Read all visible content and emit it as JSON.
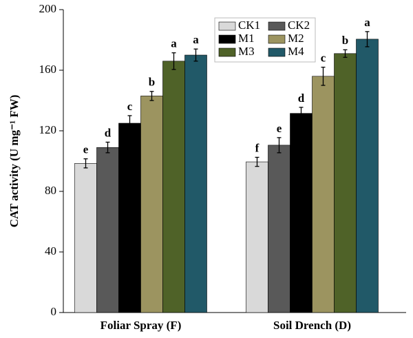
{
  "chart_data": {
    "type": "bar",
    "y_label": "CAT activity (U mg⁻¹ FW)",
    "categories": [
      "Foliar Spray (F)",
      "Soil Drench (D)"
    ],
    "series": [
      {
        "name": "CK1",
        "color": "#d9d9d9",
        "values": [
          98.5,
          99.5
        ],
        "errors": [
          3,
          3
        ],
        "letters": [
          "e",
          "f"
        ]
      },
      {
        "name": "CK2",
        "color": "#595959",
        "values": [
          109,
          110.5
        ],
        "errors": [
          3.5,
          5
        ],
        "letters": [
          "d",
          "e"
        ]
      },
      {
        "name": "M1",
        "color": "#000000",
        "values": [
          125,
          131.5
        ],
        "errors": [
          5,
          4
        ],
        "letters": [
          "c",
          "d"
        ]
      },
      {
        "name": "M2",
        "color": "#9c9460",
        "values": [
          143,
          156
        ],
        "errors": [
          3,
          6
        ],
        "letters": [
          "b",
          "c"
        ]
      },
      {
        "name": "M3",
        "color": "#4f6228",
        "values": [
          166,
          171
        ],
        "errors": [
          5.5,
          2.5
        ],
        "letters": [
          "a",
          "b"
        ]
      },
      {
        "name": "M4",
        "color": "#215968",
        "values": [
          170,
          180.5
        ],
        "errors": [
          4,
          5
        ],
        "letters": [
          "a",
          "a"
        ]
      }
    ],
    "ylim": [
      0,
      200
    ],
    "yticks": [
      0,
      40,
      80,
      120,
      160,
      200
    ],
    "grid": false
  }
}
